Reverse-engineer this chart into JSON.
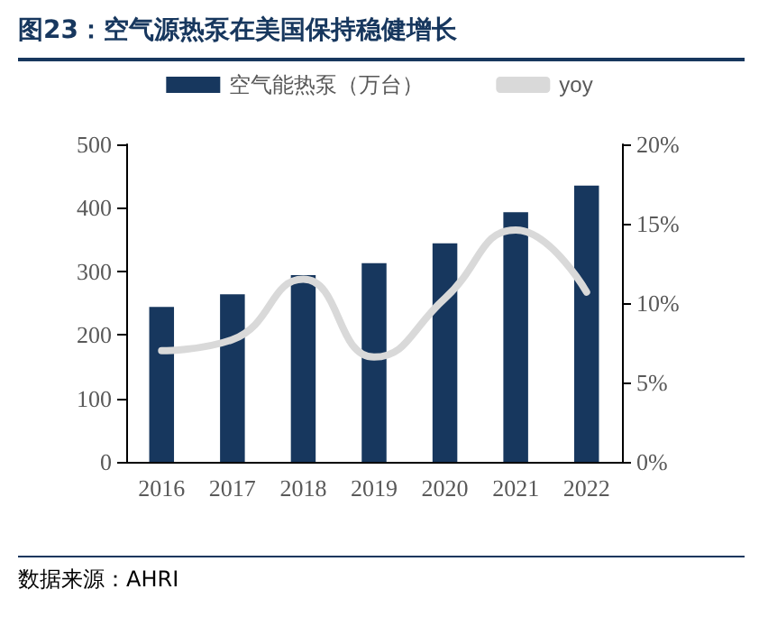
{
  "chart_data": {
    "type": "bar",
    "title": "图23：空气源热泵在美国保持稳健增长",
    "annotations": [
      "数据来源：AHRI"
    ],
    "categories": [
      "2016",
      "2017",
      "2018",
      "2019",
      "2020",
      "2021",
      "2022"
    ],
    "series": [
      {
        "name": "空气能热泵（万台）",
        "color": "#17375e",
        "values": [
          244,
          264,
          294,
          313,
          344,
          393,
          435
        ]
      },
      {
        "name": "yoy",
        "type": "line",
        "axis": "y2",
        "color": "#d9d9d9",
        "values": [
          7.0,
          7.7,
          11.5,
          6.6,
          10.3,
          14.6,
          10.7
        ]
      }
    ],
    "ylim": [
      0,
      500
    ],
    "yticks": [
      0,
      100,
      200,
      300,
      400,
      500
    ],
    "y2lim": [
      0,
      20
    ],
    "y2ticks": [
      {
        "value": 0,
        "label": "0%"
      },
      {
        "value": 5,
        "label": "5%"
      },
      {
        "value": 10,
        "label": "10%"
      },
      {
        "value": 15,
        "label": "15%"
      },
      {
        "value": 20,
        "label": "20%"
      }
    ],
    "grid": false,
    "legend": "top",
    "marker": "none",
    "line_style": "solid"
  }
}
